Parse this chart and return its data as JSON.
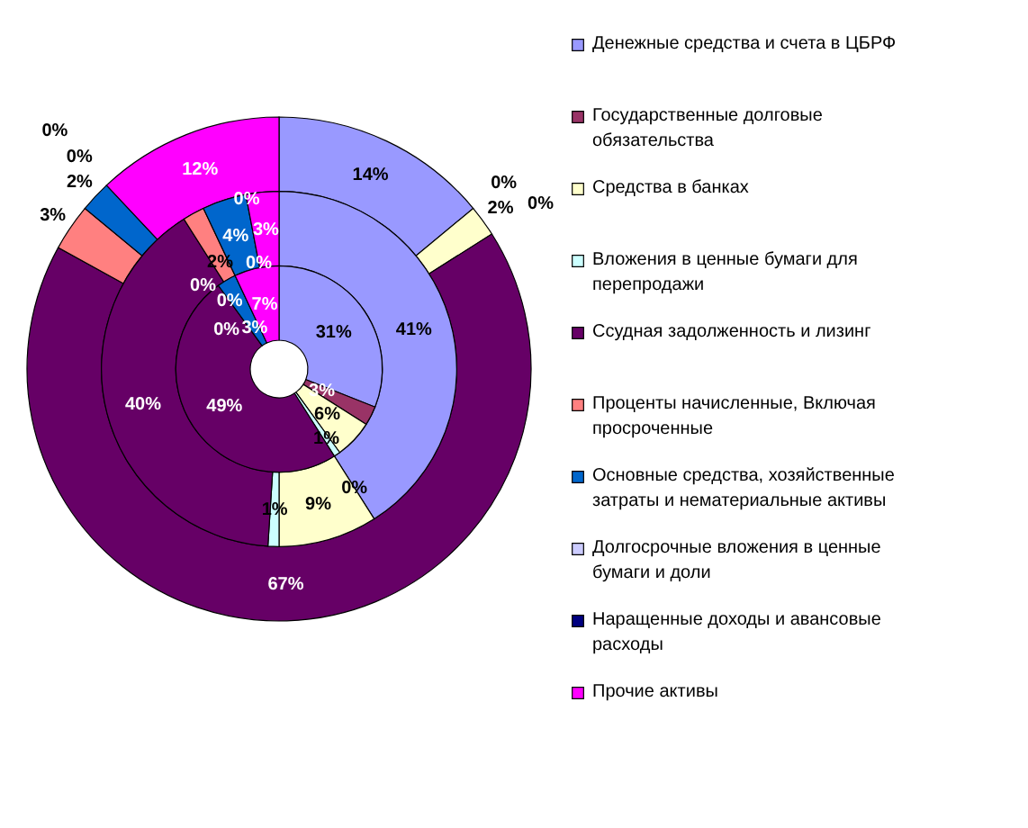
{
  "chart_data": {
    "type": "donut",
    "categories": [
      "Денежные средства и счета в ЦБРФ",
      "Государственные долговые обязательства",
      "Средства в банках",
      "Вложения в ценные бумаги для перепродажи",
      "Ссудная задолженность и лизинг",
      "Проценты начисленные, Включая просроченные",
      "Основные средства, хозяйственные затраты и нематериальные активы",
      "Долгосрочные вложения в ценные бумаги и доли",
      "Наращенные доходы и авансовые расходы",
      "Прочие активы"
    ],
    "colors": [
      "#9999ff",
      "#993366",
      "#ffffcc",
      "#ccffff",
      "#660066",
      "#ff8080",
      "#0066cc",
      "#ccccff",
      "#000080",
      "#ff00ff"
    ],
    "series": [
      {
        "values": [
          14,
          0,
          2,
          0,
          67,
          3,
          2,
          0,
          0,
          12
        ],
        "value_labels": [
          "14%",
          "0%",
          "2%",
          "0%",
          "67%",
          "3%",
          "2%",
          "0%",
          "0%",
          "12%"
        ]
      },
      {
        "values": [
          41,
          0,
          9,
          1,
          40,
          2,
          4,
          0,
          0,
          3
        ],
        "value_labels": [
          "41%",
          "0%",
          "9%",
          "1%",
          "40%",
          "2%",
          "4%",
          "0%",
          "0%",
          "3%"
        ]
      },
      {
        "values": [
          31,
          3,
          6,
          1,
          49,
          0,
          3,
          0,
          0,
          7
        ],
        "value_labels": [
          "31%",
          "3%",
          "6%",
          "1%",
          "49%",
          "0%",
          "3%",
          "0%",
          "0%",
          "7%"
        ]
      }
    ],
    "legend": "right"
  }
}
